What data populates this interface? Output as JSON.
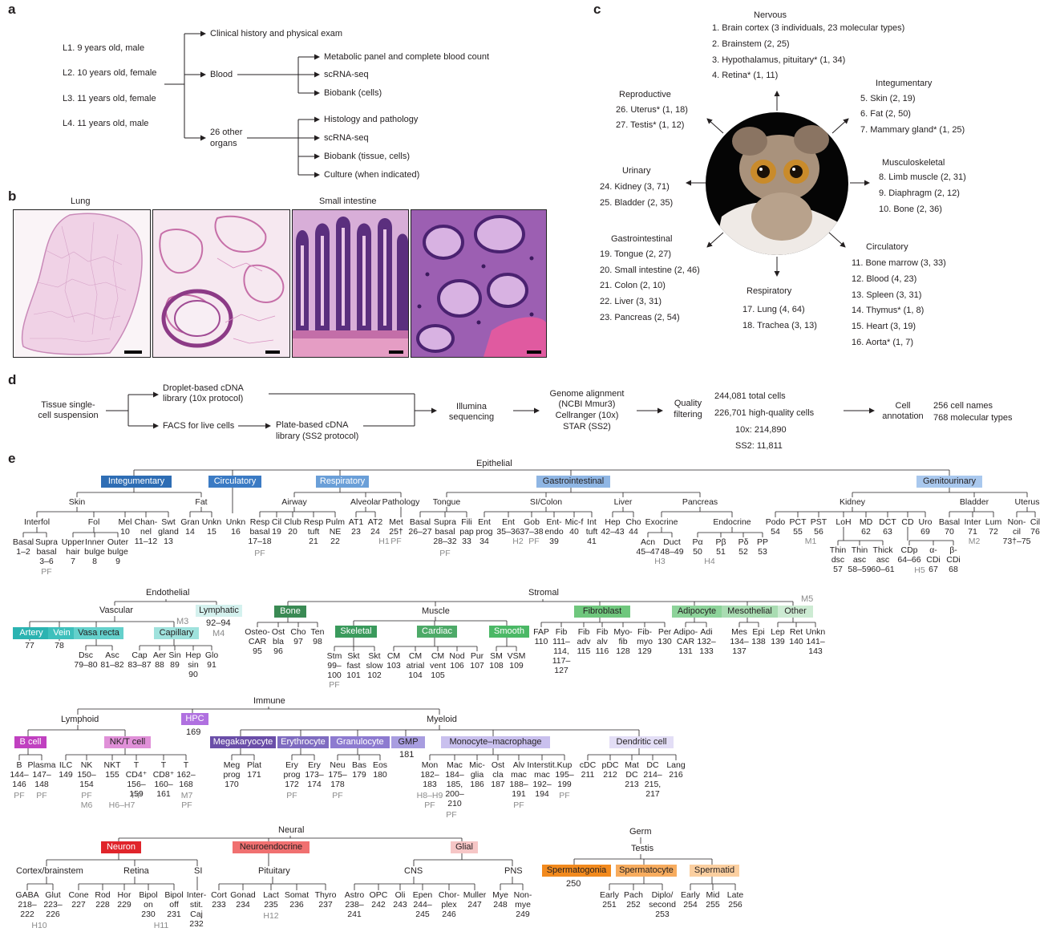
{
  "panel_labels": {
    "a": "a",
    "b": "b",
    "c": "c",
    "d": "d",
    "e": "e"
  },
  "panel_a": {
    "lemurs": [
      "L1. 9 years old, male",
      "L2. 10 years old, female",
      "L3. 11 years old, female",
      "L4. 11 years old, male"
    ],
    "clinical": "Clinical history and physical exam",
    "blood": "Blood",
    "blood_items": [
      "Metabolic panel and complete blood count",
      "scRNA-seq",
      "Biobank (cells)"
    ],
    "organs_line1": "26 other",
    "organs_line2": "organs",
    "organ_items": [
      "Histology and pathology",
      "scRNA-seq",
      "Biobank (tissue, cells)",
      "Culture (when indicated)"
    ]
  },
  "panel_b": {
    "lung": "Lung",
    "small_intestine": "Small intestine"
  },
  "panel_c": {
    "nervous": {
      "title": "Nervous",
      "items": [
        "1. Brain cortex (3 individuals, 23 molecular types)",
        "2. Brainstem (2, 25)",
        "3. Hypothalamus, pituitary* (1, 34)",
        "4. Retina* (1, 11)"
      ]
    },
    "integumentary": {
      "title": "Integumentary",
      "items": [
        "5. Skin (2, 19)",
        "6. Fat (2, 50)",
        "7. Mammary gland* (1, 25)"
      ]
    },
    "musculoskeletal": {
      "title": "Musculoskeletal",
      "items": [
        "8. Limb muscle (2, 31)",
        "9. Diaphragm (2, 12)",
        "10. Bone (2, 36)"
      ]
    },
    "circulatory": {
      "title": "Circulatory",
      "items": [
        "11. Bone marrow (3, 33)",
        "12. Blood (4, 23)",
        "13. Spleen (3, 31)",
        "14. Thymus* (1, 8)",
        "15. Heart (3, 19)",
        "16. Aorta* (1, 7)"
      ]
    },
    "respiratory": {
      "title": "Respiratory",
      "items": [
        "17. Lung (4, 64)",
        "18. Trachea (3, 13)"
      ]
    },
    "gastrointestinal": {
      "title": "Gastrointestinal",
      "items": [
        "19. Tongue (2, 27)",
        "20. Small intestine (2, 46)",
        "21. Colon (2, 10)",
        "22. Liver (3, 31)",
        "23. Pancreas (2, 54)"
      ]
    },
    "urinary": {
      "title": "Urinary",
      "items": [
        "24. Kidney (3, 71)",
        "25. Bladder (2, 35)"
      ]
    },
    "reproductive": {
      "title": "Reproductive",
      "items": [
        "26. Uterus* (1, 18)",
        "27. Testis* (1, 12)"
      ]
    }
  },
  "panel_d": {
    "tissue": [
      "Tissue single-",
      "cell suspension"
    ],
    "droplet": [
      "Droplet-based cDNA",
      "library (10x protocol)"
    ],
    "facs": "FACS for live cells",
    "plate": [
      "Plate-based cDNA",
      "library (SS2 protocol)"
    ],
    "illumina": [
      "Illumina",
      "sequencing"
    ],
    "genome": [
      "Genome alignment",
      "(NCBI Mmur3)",
      "Cellranger (10x)",
      "STAR (SS2)"
    ],
    "quality": [
      "Quality",
      "filtering"
    ],
    "stats": [
      "244,081 total cells",
      "226,701 high-quality cells",
      "10x: 214,890",
      "SS2: 11,811"
    ],
    "annotation": [
      "Cell",
      "annotation"
    ],
    "names": [
      "256 cell names",
      "768 molecular types"
    ]
  },
  "panel_e": {
    "epithelial": {
      "title": "Epithelial",
      "headers": [
        "Integumentary",
        "Circulatory",
        "Respiratory",
        "Gastrointestinal",
        "Genitourinary"
      ],
      "subs": [
        "Skin",
        "Fat",
        "Airway",
        "Alveolar",
        "Pathology",
        "Tongue",
        "SI/Colon",
        "Liver",
        "Pancreas",
        "Kidney",
        "Bladder",
        "Uterus",
        "Interfol",
        "Fol",
        "Exocrine",
        "Endocrine"
      ],
      "nodes": [
        "Basal\n1–2",
        "Supra\nbasal\n3–6",
        "Upper\nhair\n7",
        "Inner\nbulge\n8",
        "Outer\nbulge\n9",
        "Mel\n10",
        "Chan-\nnel\n11–12",
        "Swt\ngland\n13",
        "Gran\n14",
        "Unkn\n15",
        "Unkn\n16",
        "Resp\nbasal\n17–18",
        "Cil\n19",
        "Club\n20",
        "Resp\ntuft\n21",
        "Pulm\nNE\n22",
        "AT1\n23",
        "AT2\n24",
        "Met\n25†",
        "Basal\n26–27",
        "Supra\nbasal\n28–32",
        "Fili\npap\n33",
        "Ent\nprog\n34",
        "Ent\n35–36",
        "Gob\n37–38",
        "Ent-\nendo\n39",
        "Mic-f\n40",
        "Int\ntuft\n41",
        "Hep\n42–43",
        "Cho\n44",
        "Acn\n45–47",
        "Duct\n48–49",
        "Pα\n50",
        "Pβ\n51",
        "Pδ\n52",
        "PP\n53",
        "Podo\n54",
        "PCT\n55",
        "PST\n56",
        "LoH",
        "MD\n62",
        "DCT\n63",
        "CD",
        "Uro\n69",
        "Basal\n70",
        "Inter\n71",
        "Lum\n72",
        "Non-\ncil\n73†–75",
        "Cil\n76",
        "Thin\ndsc\n57",
        "Thin\nasc\n58–59",
        "Thick\nasc\n60–61",
        "CDp\n64–66",
        "α-\nCDi\n67",
        "β-\nCDi\n68"
      ],
      "tags": [
        "PF",
        "PF",
        "PF",
        "H1",
        "PF",
        "H2",
        "PF",
        "H3",
        "H4",
        "M1",
        "M2",
        "H5"
      ]
    },
    "endo_stromal": {
      "endothelial": "Endothelial",
      "vascular": "Vascular",
      "lymphatic": "Lymphatic",
      "lymph_range": "92–94",
      "m3": "M3",
      "m4": "M4",
      "headers": [
        "Artery",
        "Vein",
        "Vasa recta",
        "Capillary"
      ],
      "nodes": [
        "77",
        "78",
        "Dsc\n79–80",
        "Asc\n81–82",
        "Cap\n83–87",
        "Aer\n88",
        "Sin\n89",
        "Hep\nsin\n90",
        "Glo\n91"
      ],
      "stromal": "Stromal",
      "muscle": "Muscle",
      "m5": "M5",
      "sheaders": [
        "Bone",
        "Skeletal",
        "Cardiac",
        "Smooth",
        "Fibroblast",
        "Adipocyte",
        "Mesothelial",
        "Other"
      ],
      "snodes": [
        "Osteo-\nCAR\n95",
        "Ost\nbla\n96",
        "Cho\n97",
        "Ten\n98",
        "Stm\n99–\n100",
        "Skt\nfast\n101",
        "Skt\nslow\n102",
        "CM\n103",
        "CM\natrial\n104",
        "CM\nvent\n105",
        "Nod\n106",
        "Pur\n107",
        "SM\n108",
        "VSM\n109",
        "FAP\n110",
        "Fib\n111–\n114,\n117–\n127",
        "Fib\nadv\n115",
        "Fib\nalv\n116",
        "Myo-\nfib\n128",
        "Fib-\nmyo\n129",
        "Per\n130",
        "Adipo-\nCAR\n131",
        "Adi\n132–\n133",
        "Mes\n134–\n137",
        "Epi\n138",
        "Lep\n139",
        "Ret\n140",
        "Unkn\n141–\n143"
      ],
      "pf": "PF"
    },
    "immune": {
      "title": "Immune",
      "lymphoid": "Lymphoid",
      "myeloid": "Myeloid",
      "hpc": "HPC",
      "hpc_id": "169",
      "headers": [
        "B cell",
        "NK/T cell",
        "Megakaryocyte",
        "Erythrocyte",
        "Granulocyte",
        "GMP",
        "Monocyte–macrophage",
        "Dendritic cell"
      ],
      "gmp_id": "181",
      "nodes": [
        "B\n144–\n146",
        "Plasma\n147–\n148",
        "ILC\n149",
        "NK\n150–\n154",
        "NKT\n155",
        "T\nCD4⁺\n156–\n159",
        "T\nCD8⁺\n160–\n161",
        "T\n162–\n168",
        "Meg\nprog\n170",
        "Plat\n171",
        "Ery\nprog\n172",
        "Ery\n173–\n174",
        "Neu\n175–\n178",
        "Bas\n179",
        "Eos\n180",
        "Mon\n182–\n183",
        "Mac\n184–\n185,\n200–\n210",
        "Mic-\nglia\n186",
        "Ost\ncla\n187",
        "Alv\nmac\n188–\n191",
        "Interstit.\nmac\n192–\n194",
        "Kup\n195–\n199",
        "cDC\n211",
        "pDC\n212",
        "Mat\nDC\n213",
        "DC\n214–\n215,\n217",
        "Lang\n216"
      ],
      "tags": [
        "PF",
        "PF",
        "PF",
        "M6",
        "H6–H7",
        "PF",
        "M7",
        "PF",
        "PF",
        "PF",
        "H8–H9",
        "PF",
        "PF",
        "PF",
        "PF"
      ]
    },
    "neural": {
      "title": "Neural",
      "headers": [
        "Neuron",
        "Neuroendocrine",
        "Glial"
      ],
      "subs": [
        "Cortex/brainstem",
        "Retina",
        "SI",
        "Pituitary",
        "CNS",
        "PNS"
      ],
      "nodes": [
        "GABA\n218–\n222",
        "Glut\n223–\n226",
        "Cone\n227",
        "Rod\n228",
        "Hor\n229",
        "Bipol\non\n230",
        "Bipol\noff\n231",
        "Inter-\nstit.\nCaj\n232",
        "Cort\n233",
        "Gonad\n234",
        "Lact\n235",
        "Somat\n236",
        "Thyro\n237",
        "Astro\n238–\n241",
        "OPC\n242",
        "Oli\n243",
        "Epen\n244–\n245",
        "Chor-\nplex\n246",
        "Muller\n247",
        "Mye\n248",
        "Non-\nmye\n249"
      ],
      "tags": [
        "H10",
        "H11",
        "H12"
      ]
    },
    "germ": {
      "title": "Germ",
      "testis": "Testis",
      "headers": [
        "Spermatogonia",
        "Spermatocyte",
        "Spermatid"
      ],
      "sg_id": "250",
      "nodes": [
        "Early\n251",
        "Pach\n252",
        "Diplo/\nsecond\n253",
        "Early\n254",
        "Mid\n255",
        "Late\n256"
      ]
    }
  },
  "colors": {
    "integumentary": "#2e6db4",
    "circulatory": "#3b7bc4",
    "respiratory": "#6a9fd8",
    "gastrointestinal": "#8fb6e4",
    "genitourinary": "#a9c8ee",
    "artery": "#2bb3b1",
    "vein": "#3ec0bc",
    "vasa": "#64d0cb",
    "capillary": "#9fe2dd",
    "lymphatic": "#d4f1ee",
    "bone": "#3a8a54",
    "skeletal": "#3a9a5c",
    "cardiac": "#4daa68",
    "smooth": "#4bb866",
    "fibroblast": "#6fc77d",
    "adipocyte": "#8dd39a",
    "mesothelial": "#a9dcb2",
    "other": "#cdebd3",
    "bcell": "#c040c0",
    "nkt": "#e090d8",
    "hpc": "#b070e0",
    "mega": "#6a4ea8",
    "ery": "#7f6cc0",
    "gran": "#8d7bd0",
    "gmp": "#a89de0",
    "mono": "#c9c0ee",
    "dc": "#e3def6",
    "neuron": "#e0252b",
    "neuroendo": "#f07070",
    "glial": "#f6c6c6",
    "sg": "#f28a1e",
    "sc": "#f7ac5e",
    "st": "#fbcfa0"
  }
}
